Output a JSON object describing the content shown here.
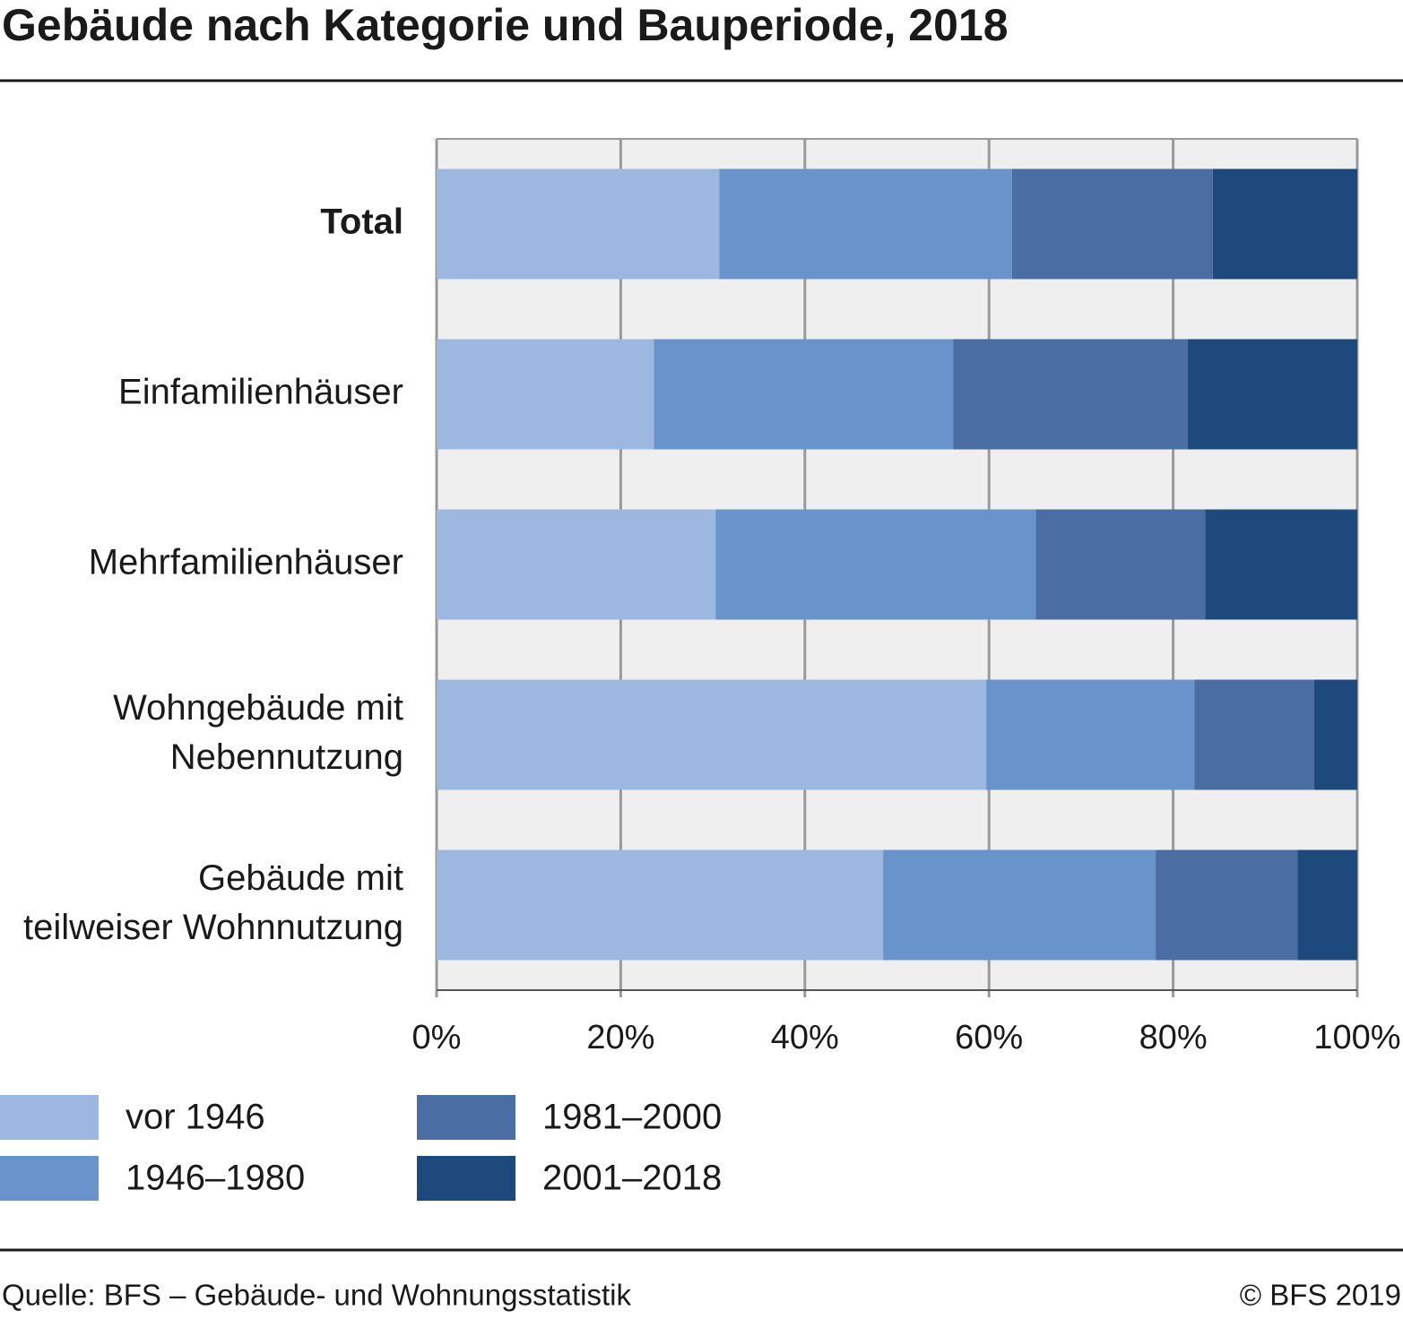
{
  "chart_data": {
    "type": "stacked_barh",
    "title": "Gebäude nach Kategorie und Bauperiode, 2018",
    "categories": [
      [
        "Total"
      ],
      [
        "Einfamilienhäuser"
      ],
      [
        "Mehrfamilienhäuser"
      ],
      [
        "Wohngebäude mit",
        "Nebennutzung"
      ],
      [
        "Gebäude mit",
        "teilweiser Wohnnutzung"
      ]
    ],
    "series": [
      {
        "name": "vor 1946",
        "color": "#9db8e0",
        "values": [
          30.7,
          23.6,
          30.3,
          59.7,
          48.5
        ]
      },
      {
        "name": "1946–1980",
        "color": "#6893cb",
        "values": [
          31.8,
          32.5,
          34.8,
          22.6,
          29.6
        ]
      },
      {
        "name": "1981–2000",
        "color": "#4a6ea3",
        "values": [
          21.8,
          25.5,
          18.4,
          13.0,
          15.4
        ]
      },
      {
        "name": "2001–2018",
        "color": "#1d497c",
        "values": [
          15.7,
          18.4,
          16.5,
          4.7,
          6.5
        ]
      }
    ],
    "xlim": [
      0,
      100
    ],
    "xticks": [
      {
        "value": 0,
        "label": "0%"
      },
      {
        "value": 20,
        "label": "20%"
      },
      {
        "value": 40,
        "label": "40%"
      },
      {
        "value": 60,
        "label": "60%"
      },
      {
        "value": 80,
        "label": "80%"
      },
      {
        "value": 100,
        "label": "100%"
      }
    ],
    "grid": true
  },
  "source": "Quelle: BFS – Gebäude- und Wohnungsstatistik",
  "copyright": "© BFS 2019"
}
